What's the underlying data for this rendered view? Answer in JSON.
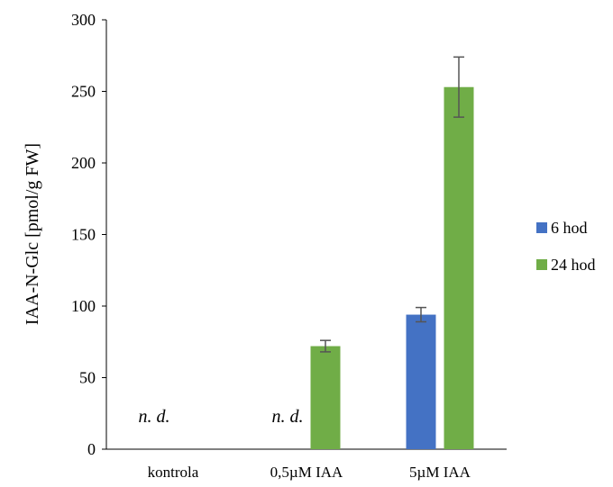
{
  "chart_data": {
    "type": "bar",
    "title": "",
    "xlabel": "",
    "ylabel": "IAA-N-Glc [pmol/g FW]",
    "ylim": [
      0,
      300
    ],
    "yticks": [
      "0",
      "50",
      "100",
      "150",
      "200",
      "250",
      "300"
    ],
    "categories": [
      "kontrola",
      "0,5µM IAA",
      "5µM IAA"
    ],
    "series": [
      {
        "name": "6 hod",
        "color": "#4472C4",
        "values": [
          null,
          null,
          94
        ],
        "errors": [
          null,
          null,
          5
        ]
      },
      {
        "name": "24 hod",
        "color": "#70AD47",
        "values": [
          null,
          72,
          253
        ],
        "errors": [
          null,
          4,
          21
        ]
      }
    ],
    "annotations": [
      {
        "category": 0,
        "series": 0,
        "text": "n. d."
      },
      {
        "category": 1,
        "series": 0,
        "text": "n. d."
      }
    ],
    "grid": false,
    "legend_position": "right"
  }
}
